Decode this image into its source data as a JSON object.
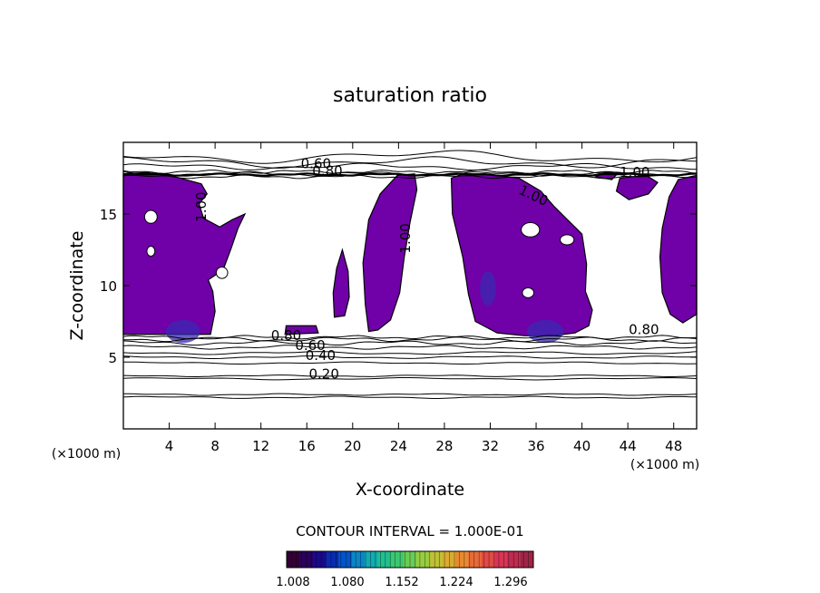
{
  "chart_data": {
    "type": "contour",
    "title": "saturation ratio",
    "xlabel": "X-coordinate",
    "ylabel": "Z-coordinate",
    "x_unit_left": "(×1000 m)",
    "x_unit_right": "(×1000 m)",
    "xlim": [
      0,
      50
    ],
    "ylim": [
      0,
      20
    ],
    "x_ticks": [
      4,
      8,
      12,
      16,
      20,
      24,
      28,
      32,
      36,
      40,
      44,
      48
    ],
    "y_ticks": [
      5,
      10,
      15
    ],
    "contour_interval_text": "CONTOUR INTERVAL = 1.000E-01",
    "contour_levels": [
      0.1,
      0.2,
      0.3,
      0.4,
      0.5,
      0.6,
      0.7,
      0.8,
      0.9,
      1.0
    ],
    "contour_labels": [
      {
        "text": "0.60",
        "x": 16.8,
        "y": 18.2
      },
      {
        "text": "0.80",
        "x": 17.8,
        "y": 17.7
      },
      {
        "text": "1.00",
        "x": 7.2,
        "y": 15.5
      },
      {
        "text": "1.00",
        "x": 25.0,
        "y": 13.3
      },
      {
        "text": "1.00",
        "x": 35.6,
        "y": 16.0
      },
      {
        "text": "1.00",
        "x": 44.6,
        "y": 17.6
      },
      {
        "text": "0.80",
        "x": 14.2,
        "y": 6.2
      },
      {
        "text": "0.60",
        "x": 16.3,
        "y": 5.5
      },
      {
        "text": "0.40",
        "x": 17.2,
        "y": 4.8
      },
      {
        "text": "0.20",
        "x": 17.5,
        "y": 3.5
      },
      {
        "text": "0.80",
        "x": 45.4,
        "y": 6.6
      }
    ],
    "colorbar": {
      "tick_labels": [
        "1.008",
        "1.080",
        "1.152",
        "1.224",
        "1.296"
      ],
      "colors": [
        "#330033",
        "#2a005c",
        "#1a0a8a",
        "#0a2ab0",
        "#0055c8",
        "#0a86c8",
        "#12aab0",
        "#1ec090",
        "#3cc870",
        "#6acc55",
        "#98cc40",
        "#c0c035",
        "#dcaa30",
        "#e88a30",
        "#e86a38",
        "#e04a45",
        "#d83555",
        "#c02a50",
        "#a02448"
      ]
    },
    "fill_color": "#7000a8",
    "core_color": "#3a28b0"
  }
}
